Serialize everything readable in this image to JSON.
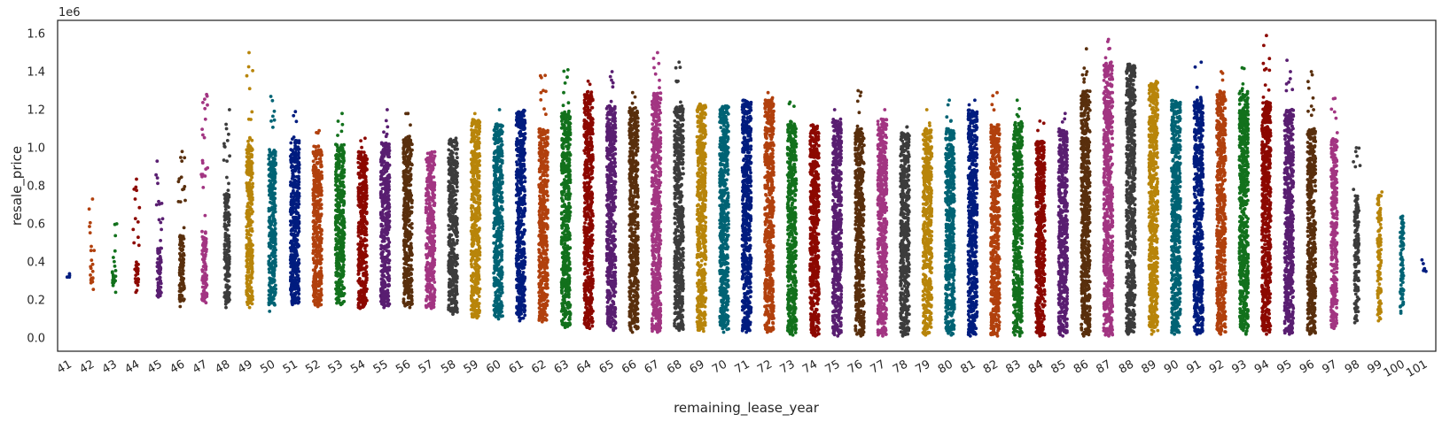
{
  "chart_data": {
    "type": "scatter",
    "subtype": "strip",
    "xlabel": "remaining_lease_year",
    "ylabel": "resale_price",
    "y_offset_text": "1e6",
    "ylim": [
      -70000,
      1670000
    ],
    "yticks": [
      0,
      200000,
      400000,
      600000,
      800000,
      1000000,
      1200000,
      1400000,
      1600000
    ],
    "ytick_labels": [
      "0.0",
      "0.2",
      "0.4",
      "0.6",
      "0.8",
      "1.0",
      "1.2",
      "1.4",
      "1.6"
    ],
    "grid": false,
    "categories": [
      "41",
      "42",
      "43",
      "44",
      "45",
      "46",
      "47",
      "48",
      "49",
      "50",
      "51",
      "52",
      "53",
      "54",
      "55",
      "56",
      "57",
      "58",
      "59",
      "60",
      "61",
      "62",
      "63",
      "64",
      "65",
      "66",
      "67",
      "68",
      "69",
      "70",
      "71",
      "72",
      "73",
      "74",
      "75",
      "76",
      "77",
      "78",
      "79",
      "80",
      "81",
      "82",
      "83",
      "84",
      "85",
      "86",
      "87",
      "88",
      "89",
      "90",
      "91",
      "92",
      "93",
      "94",
      "95",
      "96",
      "97",
      "98",
      "99",
      "100",
      "101"
    ],
    "palette": [
      "#001c7f",
      "#b1400d",
      "#12711c",
      "#8c0800",
      "#591e71",
      "#592f0d",
      "#a23582",
      "#3c3c3c",
      "#b8850a",
      "#006374"
    ],
    "series": [
      {
        "category": "41",
        "min": 320000,
        "max": 345000,
        "dense_low": 320000,
        "dense_high": 345000,
        "density": 0.02,
        "outliers": []
      },
      {
        "category": "42",
        "min": 255000,
        "max": 730000,
        "dense_low": 280000,
        "dense_high": 400000,
        "density": 0.2,
        "outliers": [
          730000
        ]
      },
      {
        "category": "43",
        "min": 240000,
        "max": 600000,
        "dense_low": 250000,
        "dense_high": 380000,
        "density": 0.3,
        "outliers": [
          600000
        ]
      },
      {
        "category": "44",
        "min": 240000,
        "max": 835000,
        "dense_low": 245000,
        "dense_high": 400000,
        "density": 0.35,
        "outliers": [
          730000,
          835000
        ]
      },
      {
        "category": "45",
        "min": 215000,
        "max": 930000,
        "dense_low": 220000,
        "dense_high": 480000,
        "density": 0.5,
        "outliers": [
          700000,
          930000
        ]
      },
      {
        "category": "46",
        "min": 165000,
        "max": 980000,
        "dense_low": 190000,
        "dense_high": 540000,
        "density": 0.55,
        "outliers": [
          780000,
          930000,
          980000
        ]
      },
      {
        "category": "47",
        "min": 185000,
        "max": 1280000,
        "dense_low": 190000,
        "dense_high": 560000,
        "density": 0.55,
        "outliers": [
          860000,
          1150000,
          1280000
        ]
      },
      {
        "category": "48",
        "min": 160000,
        "max": 1200000,
        "dense_low": 175000,
        "dense_high": 760000,
        "density": 0.6,
        "outliers": [
          930000,
          1100000,
          1200000
        ]
      },
      {
        "category": "49",
        "min": 160000,
        "max": 1500000,
        "dense_low": 175000,
        "dense_high": 1020000,
        "density": 0.7,
        "outliers": [
          1500000
        ]
      },
      {
        "category": "50",
        "min": 140000,
        "max": 1270000,
        "dense_low": 165000,
        "dense_high": 980000,
        "density": 0.8,
        "outliers": [
          1140000,
          1270000
        ]
      },
      {
        "category": "51",
        "min": 175000,
        "max": 1190000,
        "dense_low": 180000,
        "dense_high": 1040000,
        "density": 1.0,
        "outliers": [
          1190000
        ]
      },
      {
        "category": "52",
        "min": 165000,
        "max": 1090000,
        "dense_low": 170000,
        "dense_high": 1010000,
        "density": 1.0,
        "outliers": [
          1090000
        ]
      },
      {
        "category": "53",
        "min": 175000,
        "max": 1180000,
        "dense_low": 180000,
        "dense_high": 1020000,
        "density": 1.0,
        "outliers": [
          1180000
        ]
      },
      {
        "category": "54",
        "min": 155000,
        "max": 1050000,
        "dense_low": 160000,
        "dense_high": 980000,
        "density": 1.0,
        "outliers": [
          1050000
        ]
      },
      {
        "category": "55",
        "min": 160000,
        "max": 1200000,
        "dense_low": 165000,
        "dense_high": 1030000,
        "density": 1.0,
        "outliers": [
          1110000,
          1200000
        ]
      },
      {
        "category": "56",
        "min": 160000,
        "max": 1180000,
        "dense_low": 165000,
        "dense_high": 1060000,
        "density": 1.0,
        "outliers": [
          1180000
        ]
      },
      {
        "category": "57",
        "min": 155000,
        "max": 990000,
        "dense_low": 160000,
        "dense_high": 980000,
        "density": 1.0,
        "outliers": []
      },
      {
        "category": "58",
        "min": 125000,
        "max": 1070000,
        "dense_low": 135000,
        "dense_high": 1050000,
        "density": 1.0,
        "outliers": []
      },
      {
        "category": "59",
        "min": 105000,
        "max": 1180000,
        "dense_low": 110000,
        "dense_high": 1150000,
        "density": 1.0,
        "outliers": []
      },
      {
        "category": "60",
        "min": 100000,
        "max": 1200000,
        "dense_low": 105000,
        "dense_high": 1120000,
        "density": 1.0,
        "outliers": [
          1200000
        ]
      },
      {
        "category": "61",
        "min": 90000,
        "max": 1210000,
        "dense_low": 95000,
        "dense_high": 1200000,
        "density": 1.0,
        "outliers": []
      },
      {
        "category": "62",
        "min": 85000,
        "max": 1380000,
        "dense_low": 90000,
        "dense_high": 1100000,
        "density": 1.0,
        "outliers": [
          1290000,
          1380000
        ]
      },
      {
        "category": "63",
        "min": 55000,
        "max": 1410000,
        "dense_low": 60000,
        "dense_high": 1190000,
        "density": 1.0,
        "outliers": [
          1290000,
          1340000,
          1410000
        ]
      },
      {
        "category": "64",
        "min": 50000,
        "max": 1350000,
        "dense_low": 55000,
        "dense_high": 1300000,
        "density": 1.0,
        "outliers": [
          1350000
        ]
      },
      {
        "category": "65",
        "min": 40000,
        "max": 1400000,
        "dense_low": 45000,
        "dense_high": 1220000,
        "density": 1.0,
        "outliers": [
          1320000,
          1400000
        ]
      },
      {
        "category": "66",
        "min": 30000,
        "max": 1290000,
        "dense_low": 35000,
        "dense_high": 1210000,
        "density": 1.0,
        "outliers": [
          1290000
        ]
      },
      {
        "category": "67",
        "min": 30000,
        "max": 1500000,
        "dense_low": 35000,
        "dense_high": 1290000,
        "density": 1.0,
        "outliers": [
          1470000,
          1500000
        ]
      },
      {
        "category": "68",
        "min": 40000,
        "max": 1450000,
        "dense_low": 45000,
        "dense_high": 1220000,
        "density": 1.0,
        "outliers": [
          1350000,
          1450000
        ]
      },
      {
        "category": "69",
        "min": 35000,
        "max": 1240000,
        "dense_low": 40000,
        "dense_high": 1230000,
        "density": 1.0,
        "outliers": []
      },
      {
        "category": "70",
        "min": 30000,
        "max": 1230000,
        "dense_low": 35000,
        "dense_high": 1220000,
        "density": 1.0,
        "outliers": []
      },
      {
        "category": "71",
        "min": 30000,
        "max": 1260000,
        "dense_low": 35000,
        "dense_high": 1250000,
        "density": 1.0,
        "outliers": []
      },
      {
        "category": "72",
        "min": 30000,
        "max": 1290000,
        "dense_low": 35000,
        "dense_high": 1260000,
        "density": 1.0,
        "outliers": [
          1290000
        ]
      },
      {
        "category": "73",
        "min": 15000,
        "max": 1240000,
        "dense_low": 20000,
        "dense_high": 1140000,
        "density": 1.0,
        "outliers": [
          1240000
        ]
      },
      {
        "category": "74",
        "min": 10000,
        "max": 1130000,
        "dense_low": 15000,
        "dense_high": 1120000,
        "density": 1.0,
        "outliers": []
      },
      {
        "category": "75",
        "min": 10000,
        "max": 1200000,
        "dense_low": 15000,
        "dense_high": 1150000,
        "density": 1.0,
        "outliers": [
          1200000
        ]
      },
      {
        "category": "76",
        "min": 10000,
        "max": 1300000,
        "dense_low": 15000,
        "dense_high": 1100000,
        "density": 1.0,
        "outliers": [
          1300000
        ]
      },
      {
        "category": "77",
        "min": 10000,
        "max": 1200000,
        "dense_low": 15000,
        "dense_high": 1150000,
        "density": 1.0,
        "outliers": [
          1200000
        ]
      },
      {
        "category": "78",
        "min": 10000,
        "max": 1110000,
        "dense_low": 15000,
        "dense_high": 1080000,
        "density": 1.0,
        "outliers": [
          1110000
        ]
      },
      {
        "category": "79",
        "min": 15000,
        "max": 1200000,
        "dense_low": 20000,
        "dense_high": 1100000,
        "density": 1.0,
        "outliers": [
          1200000
        ]
      },
      {
        "category": "80",
        "min": 15000,
        "max": 1250000,
        "dense_low": 20000,
        "dense_high": 1100000,
        "density": 1.0,
        "outliers": [
          1250000
        ]
      },
      {
        "category": "81",
        "min": 10000,
        "max": 1250000,
        "dense_low": 15000,
        "dense_high": 1200000,
        "density": 1.0,
        "outliers": [
          1250000
        ]
      },
      {
        "category": "82",
        "min": 10000,
        "max": 1290000,
        "dense_low": 15000,
        "dense_high": 1120000,
        "density": 1.0,
        "outliers": [
          1290000
        ]
      },
      {
        "category": "83",
        "min": 10000,
        "max": 1250000,
        "dense_low": 15000,
        "dense_high": 1140000,
        "density": 1.0,
        "outliers": [
          1250000
        ]
      },
      {
        "category": "84",
        "min": 10000,
        "max": 1140000,
        "dense_low": 15000,
        "dense_high": 1040000,
        "density": 1.0,
        "outliers": [
          1140000
        ]
      },
      {
        "category": "85",
        "min": 10000,
        "max": 1180000,
        "dense_low": 15000,
        "dense_high": 1100000,
        "density": 1.0,
        "outliers": [
          1180000
        ]
      },
      {
        "category": "86",
        "min": 10000,
        "max": 1520000,
        "dense_low": 15000,
        "dense_high": 1300000,
        "density": 1.0,
        "outliers": [
          1400000,
          1520000
        ]
      },
      {
        "category": "87",
        "min": 10000,
        "max": 1570000,
        "dense_low": 15000,
        "dense_high": 1450000,
        "density": 1.0,
        "outliers": [
          1520000,
          1570000
        ]
      },
      {
        "category": "88",
        "min": 20000,
        "max": 1460000,
        "dense_low": 25000,
        "dense_high": 1440000,
        "density": 1.0,
        "outliers": []
      },
      {
        "category": "89",
        "min": 20000,
        "max": 1360000,
        "dense_low": 25000,
        "dense_high": 1350000,
        "density": 1.0,
        "outliers": []
      },
      {
        "category": "90",
        "min": 20000,
        "max": 1260000,
        "dense_low": 25000,
        "dense_high": 1250000,
        "density": 1.0,
        "outliers": []
      },
      {
        "category": "91",
        "min": 20000,
        "max": 1450000,
        "dense_low": 25000,
        "dense_high": 1250000,
        "density": 1.0,
        "outliers": [
          1450000
        ]
      },
      {
        "category": "92",
        "min": 20000,
        "max": 1400000,
        "dense_low": 25000,
        "dense_high": 1300000,
        "density": 1.0,
        "outliers": [
          1400000
        ]
      },
      {
        "category": "93",
        "min": 20000,
        "max": 1420000,
        "dense_low": 25000,
        "dense_high": 1300000,
        "density": 1.0,
        "outliers": [
          1420000
        ]
      },
      {
        "category": "94",
        "min": 20000,
        "max": 1590000,
        "dense_low": 25000,
        "dense_high": 1250000,
        "density": 1.0,
        "outliers": [
          1330000,
          1590000
        ]
      },
      {
        "category": "95",
        "min": 20000,
        "max": 1460000,
        "dense_low": 25000,
        "dense_high": 1200000,
        "density": 1.0,
        "outliers": [
          1300000,
          1460000
        ]
      },
      {
        "category": "96",
        "min": 20000,
        "max": 1400000,
        "dense_low": 25000,
        "dense_high": 1100000,
        "density": 0.9,
        "outliers": [
          1200000,
          1400000
        ]
      },
      {
        "category": "97",
        "min": 50000,
        "max": 1260000,
        "dense_low": 55000,
        "dense_high": 1050000,
        "density": 0.7,
        "outliers": [
          1260000
        ]
      },
      {
        "category": "98",
        "min": 80000,
        "max": 1000000,
        "dense_low": 85000,
        "dense_high": 760000,
        "density": 0.5,
        "outliers": [
          900000,
          1000000
        ]
      },
      {
        "category": "99",
        "min": 90000,
        "max": 780000,
        "dense_low": 95000,
        "dense_high": 750000,
        "density": 0.4,
        "outliers": []
      },
      {
        "category": "100",
        "min": 130000,
        "max": 660000,
        "dense_low": 135000,
        "dense_high": 650000,
        "density": 0.35,
        "outliers": []
      },
      {
        "category": "101",
        "min": 350000,
        "max": 410000,
        "dense_low": 350000,
        "dense_high": 380000,
        "density": 0.05,
        "outliers": [
          410000
        ]
      }
    ]
  }
}
